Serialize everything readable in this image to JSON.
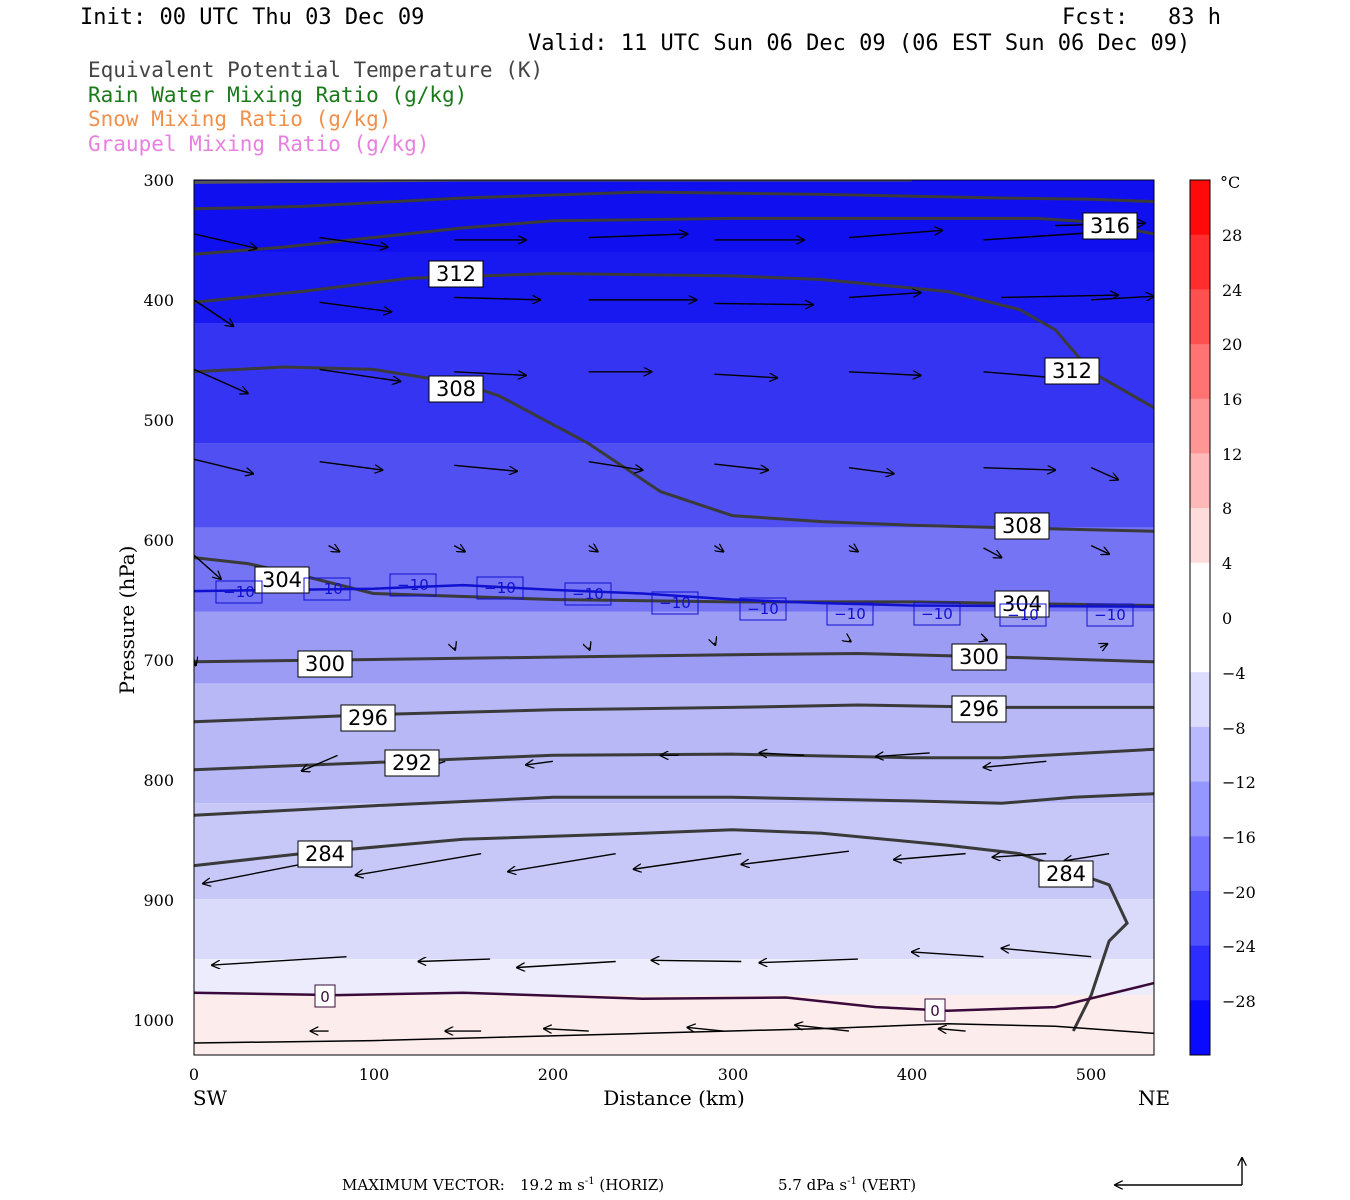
{
  "header": {
    "init": "Init: 00 UTC Thu 03 Dec 09",
    "fcst": "Fcst:   83 h",
    "valid": "Valid: 11 UTC Sun 06 Dec 09 (06 EST Sun 06 Dec 09)"
  },
  "legend": [
    {
      "label": "Equivalent Potential Temperature (K)",
      "color": "#444444"
    },
    {
      "label": "Rain Water Mixing Ratio (g/kg)",
      "color": "#1a7a1a"
    },
    {
      "label": "Snow Mixing Ratio (g/kg)",
      "color": "#f0904a"
    },
    {
      "label": "Graupel Mixing Ratio (g/kg)",
      "color": "#e880e0"
    }
  ],
  "colors": {
    "theta_contour": "#3a3a3a",
    "isotherm_m10": "#1010d0",
    "isotherm_0": "#3a0a3a",
    "arrow": "#000000"
  },
  "footer": {
    "max_vector_label": "MAXIMUM VECTOR:",
    "horiz_value": "19.2 m s",
    "horiz_exp": "-1",
    "horiz_unit": " (HORIZ)",
    "vert_value": "5.7 dPa s",
    "vert_exp": "-1",
    "vert_unit": " (VERT)"
  },
  "chart_data": {
    "type": "cross-section",
    "xlabel": "Distance (km)",
    "ylabel": "Pressure (hPa)",
    "xlim": [
      0,
      535
    ],
    "ylim": [
      1030,
      300
    ],
    "x_ticks": [
      0,
      100,
      200,
      300,
      400,
      500
    ],
    "y_ticks": [
      300,
      400,
      500,
      600,
      700,
      800,
      900,
      1000
    ],
    "x_end_labels": {
      "left": "SW",
      "right": "NE"
    },
    "colorbar": {
      "unit": "°C",
      "ticks": [
        "28",
        "24",
        "20",
        "16",
        "12",
        "8",
        "4",
        "0",
        "−4",
        "−8",
        "−12",
        "−16",
        "−20",
        "−24",
        "−28"
      ],
      "range": [
        -32,
        32
      ]
    },
    "theta_e_labels": [
      "316",
      "312",
      "312",
      "308",
      "308",
      "304",
      "304",
      "300",
      "300",
      "296",
      "296",
      "292",
      "284",
      "284"
    ],
    "theta_e_contours": [
      {
        "value": 316,
        "points": [
          [
            0,
            324
          ],
          [
            60,
            322
          ],
          [
            150,
            315
          ],
          [
            250,
            310
          ],
          [
            350,
            312
          ],
          [
            450,
            315
          ],
          [
            500,
            316
          ],
          [
            535,
            318
          ]
        ]
      },
      {
        "value": 316,
        "points": [
          [
            0,
            362
          ],
          [
            50,
            356
          ],
          [
            100,
            348
          ],
          [
            150,
            340
          ],
          [
            200,
            334
          ],
          [
            300,
            332
          ],
          [
            400,
            332
          ],
          [
            470,
            332
          ],
          [
            500,
            335
          ],
          [
            535,
            345
          ]
        ]
      },
      {
        "value": 312,
        "points": [
          [
            0,
            402
          ],
          [
            60,
            393
          ],
          [
            120,
            382
          ],
          [
            200,
            378
          ],
          [
            300,
            380
          ],
          [
            350,
            383
          ],
          [
            420,
            393
          ],
          [
            460,
            408
          ],
          [
            480,
            425
          ],
          [
            500,
            460
          ],
          [
            535,
            490
          ]
        ]
      },
      {
        "value": 308,
        "points": [
          [
            0,
            460
          ],
          [
            50,
            456
          ],
          [
            100,
            458
          ],
          [
            150,
            470
          ],
          [
            170,
            480
          ],
          [
            220,
            520
          ],
          [
            260,
            560
          ],
          [
            300,
            580
          ],
          [
            350,
            585
          ],
          [
            400,
            588
          ],
          [
            450,
            590
          ],
          [
            535,
            593
          ]
        ]
      },
      {
        "value": 304,
        "points": [
          [
            0,
            615
          ],
          [
            30,
            620
          ],
          [
            60,
            630
          ],
          [
            100,
            645
          ],
          [
            200,
            650
          ],
          [
            300,
            652
          ],
          [
            400,
            652
          ],
          [
            535,
            655
          ]
        ]
      },
      {
        "value": 300,
        "points": [
          [
            0,
            702
          ],
          [
            100,
            700
          ],
          [
            200,
            698
          ],
          [
            300,
            696
          ],
          [
            370,
            695
          ],
          [
            450,
            698
          ],
          [
            535,
            702
          ]
        ]
      },
      {
        "value": 296,
        "points": [
          [
            0,
            752
          ],
          [
            100,
            746
          ],
          [
            200,
            742
          ],
          [
            300,
            740
          ],
          [
            370,
            738
          ],
          [
            450,
            740
          ],
          [
            535,
            740
          ]
        ]
      },
      {
        "value": 292,
        "points": [
          [
            0,
            792
          ],
          [
            100,
            786
          ],
          [
            200,
            780
          ],
          [
            300,
            779
          ],
          [
            400,
            782
          ],
          [
            450,
            782
          ],
          [
            535,
            775
          ]
        ]
      },
      {
        "value": 288,
        "points": [
          [
            0,
            830
          ],
          [
            100,
            822
          ],
          [
            200,
            815
          ],
          [
            300,
            815
          ],
          [
            400,
            818
          ],
          [
            450,
            820
          ],
          [
            490,
            815
          ],
          [
            535,
            812
          ]
        ]
      },
      {
        "value": 284,
        "points": [
          [
            0,
            872
          ],
          [
            60,
            862
          ],
          [
            150,
            850
          ],
          [
            250,
            845
          ],
          [
            300,
            842
          ],
          [
            350,
            845
          ],
          [
            420,
            855
          ],
          [
            460,
            862
          ],
          [
            480,
            872
          ],
          [
            510,
            888
          ],
          [
            520,
            920
          ],
          [
            510,
            935
          ],
          [
            500,
            980
          ],
          [
            490,
            1010
          ]
        ]
      }
    ],
    "isotherm_minus10": {
      "label": "−10",
      "points": [
        [
          0,
          643
        ],
        [
          100,
          641
        ],
        [
          150,
          638
        ],
        [
          200,
          642
        ],
        [
          250,
          645
        ],
        [
          300,
          650
        ],
        [
          350,
          653
        ],
        [
          400,
          655
        ],
        [
          535,
          656
        ]
      ]
    },
    "isotherm_minus10_labels": [
      "−10",
      "−10",
      "−10",
      "−10",
      "−10",
      "−10",
      "−10",
      "−10",
      "−10",
      "−10",
      "−10"
    ],
    "isotherm_zero": {
      "label": "0",
      "points": [
        [
          0,
          978
        ],
        [
          80,
          980
        ],
        [
          150,
          978
        ],
        [
          250,
          983
        ],
        [
          330,
          982
        ],
        [
          380,
          990
        ],
        [
          420,
          993
        ],
        [
          480,
          990
        ],
        [
          535,
          970
        ]
      ]
    },
    "isotherm_zero_labels": [
      "0",
      "0"
    ]
  }
}
